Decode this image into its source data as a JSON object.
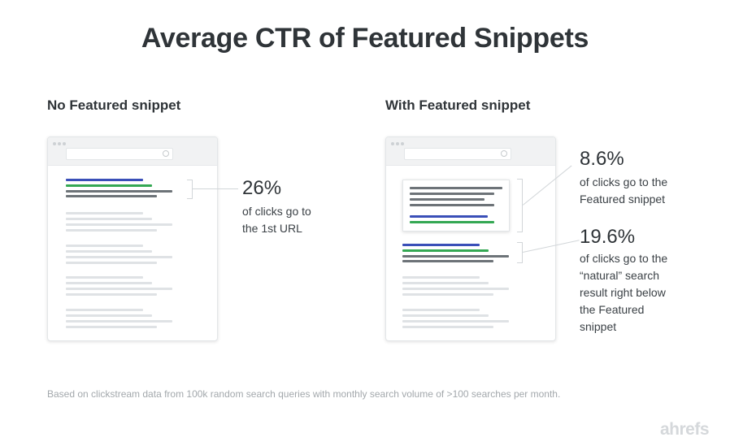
{
  "title": "Average CTR of Featured Snippets",
  "panels": {
    "no_snippet": {
      "heading": "No Featured snippet",
      "stat": {
        "value": "26%",
        "desc": [
          "of clicks go to",
          "the 1st URL"
        ]
      }
    },
    "with_snippet": {
      "heading": "With Featured snippet",
      "stats": [
        {
          "value": "8.6%",
          "desc": [
            "of clicks go to the",
            "Featured snippet"
          ]
        },
        {
          "value": "19.6%",
          "desc": [
            "of clicks go to the",
            "“natural” search",
            "result right below",
            "the Featured",
            "snippet"
          ]
        }
      ]
    }
  },
  "footnote": "Based on clickstream data from 100k random search queries with monthly search volume of >100 searches per month.",
  "logo": "ahrefs",
  "colors": {
    "link_blue": "#3a4fb8",
    "url_green": "#34a853",
    "text_dark": "#6d7378",
    "placeholder_light": "#dfe2e5",
    "logo_gray": "#d5d8db"
  }
}
